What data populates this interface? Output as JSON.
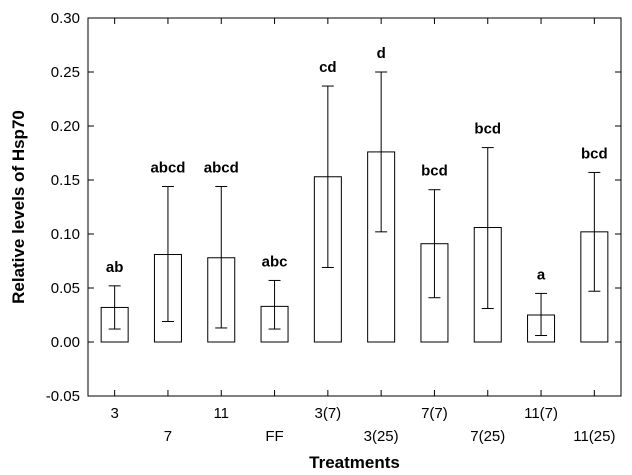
{
  "chart_data": {
    "type": "bar",
    "title": "",
    "xlabel": "Treatments",
    "ylabel": "Relative levels of Hsp70",
    "ylim": [
      -0.05,
      0.3
    ],
    "yticks": [
      "-0.05",
      "0.00",
      "0.05",
      "0.10",
      "0.15",
      "0.20",
      "0.25",
      "0.30"
    ],
    "grid": false,
    "categories": [
      "3",
      "7",
      "11",
      "FF",
      "3(7)",
      "3(25)",
      "7(7)",
      "7(25)",
      "11(7)",
      "11(25)"
    ],
    "values": [
      0.032,
      0.081,
      0.078,
      0.033,
      0.153,
      0.176,
      0.091,
      0.106,
      0.025,
      0.102
    ],
    "error_low": [
      0.012,
      0.019,
      0.013,
      0.012,
      0.069,
      0.102,
      0.041,
      0.031,
      0.006,
      0.047
    ],
    "error_high": [
      0.052,
      0.144,
      0.144,
      0.057,
      0.237,
      0.25,
      0.141,
      0.18,
      0.045,
      0.157
    ],
    "significance_labels": [
      "ab",
      "abcd",
      "abcd",
      "abc",
      "cd",
      "d",
      "bcd",
      "bcd",
      "a",
      "bcd"
    ]
  }
}
